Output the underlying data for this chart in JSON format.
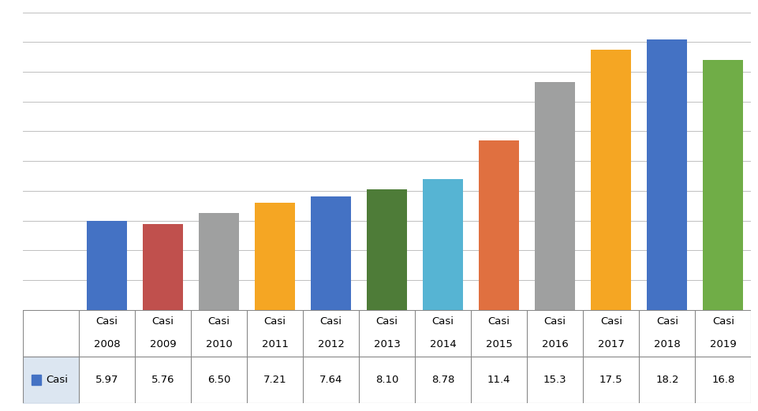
{
  "categories": [
    "Casi\n2008",
    "Casi\n2009",
    "Casi\n2010",
    "Casi\n2011",
    "Casi\n2012",
    "Casi\n2013",
    "Casi\n2014",
    "Casi\n2015",
    "Casi\n2016",
    "Casi\n2017",
    "Casi\n2018",
    "Casi\n2019"
  ],
  "cat_row1": [
    "Casi",
    "Casi",
    "Casi",
    "Casi",
    "Casi",
    "Casi",
    "Casi",
    "Casi",
    "Casi",
    "Casi",
    "Casi",
    "Casi"
  ],
  "cat_row2": [
    "2008",
    "2009",
    "2010",
    "2011",
    "2012",
    "2013",
    "2014",
    "2015",
    "2016",
    "2017",
    "2018",
    "2019"
  ],
  "values": [
    5.97,
    5.76,
    6.5,
    7.21,
    7.64,
    8.1,
    8.78,
    11.4,
    15.3,
    17.5,
    18.2,
    16.8
  ],
  "legend_values": [
    "5.97",
    "5.76",
    "6.50",
    "7.21",
    "7.64",
    "8.10",
    "8.78",
    "11.4",
    "15.3",
    "17.5",
    "18.2",
    "16.8"
  ],
  "bar_colors": [
    "#4472C4",
    "#C0504D",
    "#9FA0A0",
    "#F5A623",
    "#4472C4",
    "#4E7C38",
    "#56B4D3",
    "#E07040",
    "#9FA0A0",
    "#F5A623",
    "#4472C4",
    "#70AD47"
  ],
  "ylim": [
    0,
    20
  ],
  "yticks": [
    0,
    2,
    4,
    6,
    8,
    10,
    12,
    14,
    16,
    18,
    20
  ],
  "legend_label": "Casi",
  "legend_color": "#4472C4",
  "background_color": "#FFFFFF",
  "grid_color": "#C0C0C0",
  "table_border_color": "#888888",
  "legend_bg": "#DCE6F1"
}
